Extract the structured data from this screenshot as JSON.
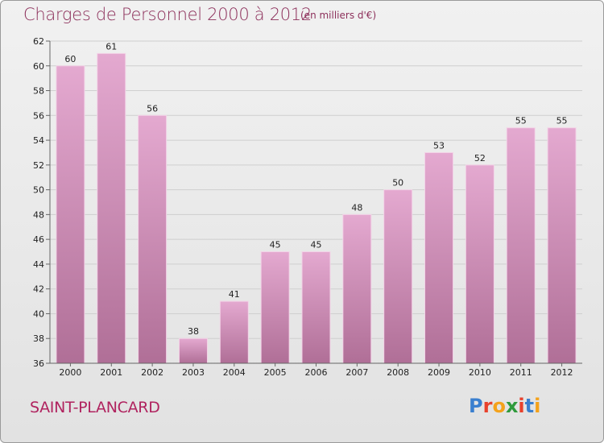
{
  "header": {
    "title": "Charges de Personnel 2000 à 2012",
    "units": "(en milliers d'€)"
  },
  "footer": {
    "commune": "SAINT-PLANCARD",
    "logo": [
      "P",
      "r",
      "o",
      "x",
      "i",
      "t",
      "i"
    ]
  },
  "colors": {
    "bar_top": "#e4a9d0",
    "bar_bottom": "#b06f97",
    "title": "#8c2f5a",
    "commune": "#b0235f",
    "logo": [
      "#3a7fcf",
      "#e8412c",
      "#f4a21b",
      "#2f9a3c",
      "#e8412c",
      "#3a7fcf",
      "#f4a21b"
    ]
  },
  "chart_data": {
    "type": "bar",
    "categories": [
      "2000",
      "2001",
      "2002",
      "2003",
      "2004",
      "2005",
      "2006",
      "2007",
      "2008",
      "2009",
      "2010",
      "2011",
      "2012"
    ],
    "values": [
      60,
      61,
      56,
      38,
      41,
      45,
      45,
      48,
      50,
      53,
      52,
      55,
      55
    ],
    "ylim": [
      36,
      62
    ],
    "yticks": [
      36,
      38,
      40,
      42,
      44,
      46,
      48,
      50,
      52,
      54,
      56,
      58,
      60,
      62
    ],
    "grid": true,
    "title": "Charges de Personnel 2000 à 2012",
    "ylabel": "",
    "xlabel": ""
  }
}
